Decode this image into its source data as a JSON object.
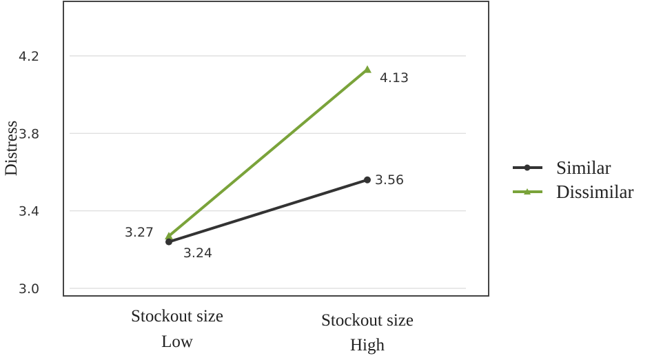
{
  "chart_data": {
    "type": "line",
    "title": "",
    "ylabel": "Distress",
    "xlabel": "",
    "categories": [
      [
        "Stockout size",
        "Low"
      ],
      [
        "Stockout size",
        "High"
      ]
    ],
    "ylim": [
      3.0,
      4.3
    ],
    "yticks": [
      3.0,
      3.4,
      3.8,
      4.2
    ],
    "ytick_labels": [
      "3.0",
      "3.4",
      "3.8",
      "4.2"
    ],
    "grid": "horizontal",
    "legend_position": "right",
    "series": [
      {
        "name": "Similar",
        "values": [
          3.24,
          3.56
        ],
        "data_labels": [
          "3.24",
          "3.56"
        ],
        "color": "#333333",
        "marker": "circle"
      },
      {
        "name": "Dissimilar",
        "values": [
          3.27,
          4.13
        ],
        "data_labels": [
          "3.27",
          "4.13"
        ],
        "color": "#7aa33a",
        "marker": "triangle"
      }
    ]
  }
}
